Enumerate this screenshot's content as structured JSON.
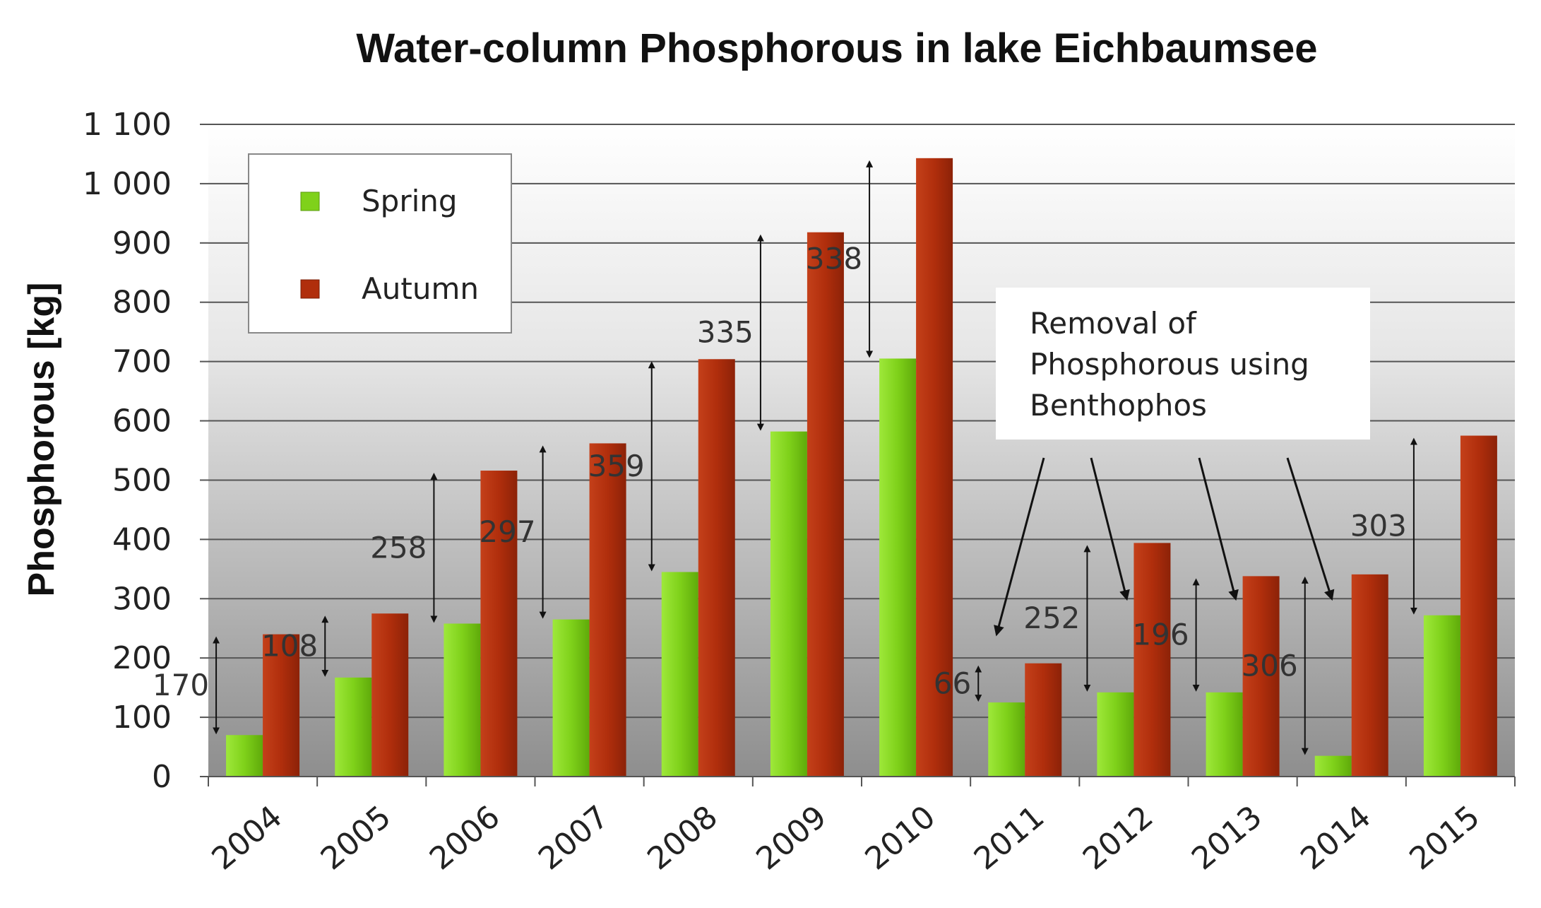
{
  "chart_data": {
    "type": "bar",
    "title": "Water-column Phosphorous in lake Eichbaumsee",
    "xlabel": "",
    "ylabel": "Phosphorous [kg]",
    "ylim": [
      0,
      1100
    ],
    "ytick_labels": [
      "0",
      "100",
      "200",
      "300",
      "400",
      "500",
      "600",
      "700",
      "800",
      "900",
      "1 000",
      "1 100"
    ],
    "grid": true,
    "legend_position": "top-left",
    "categories": [
      "2004",
      "2005",
      "2006",
      "2007",
      "2008",
      "2009",
      "2010",
      "2011",
      "2012",
      "2013",
      "2014",
      "2015"
    ],
    "series": [
      {
        "name": "Spring",
        "color": "#7fd11a",
        "values": [
          70,
          167,
          258,
          265,
          345,
          582,
          705,
          125,
          142,
          142,
          35,
          272
        ]
      },
      {
        "name": "Autumn",
        "color": "#b02e0c",
        "values": [
          240,
          275,
          516,
          562,
          704,
          918,
          1043,
          191,
          394,
          338,
          341,
          575
        ]
      }
    ],
    "difference_labels": [
      "170",
      "108",
      "258",
      "297",
      "359",
      "335",
      "338",
      "66",
      "252",
      "196",
      "306",
      "303"
    ],
    "annotation": {
      "lines": [
        "Removal of",
        "Phosphorous using",
        "Benthophos"
      ],
      "arrow_targets": [
        "2011",
        "2012",
        "2013",
        "2014"
      ]
    }
  }
}
